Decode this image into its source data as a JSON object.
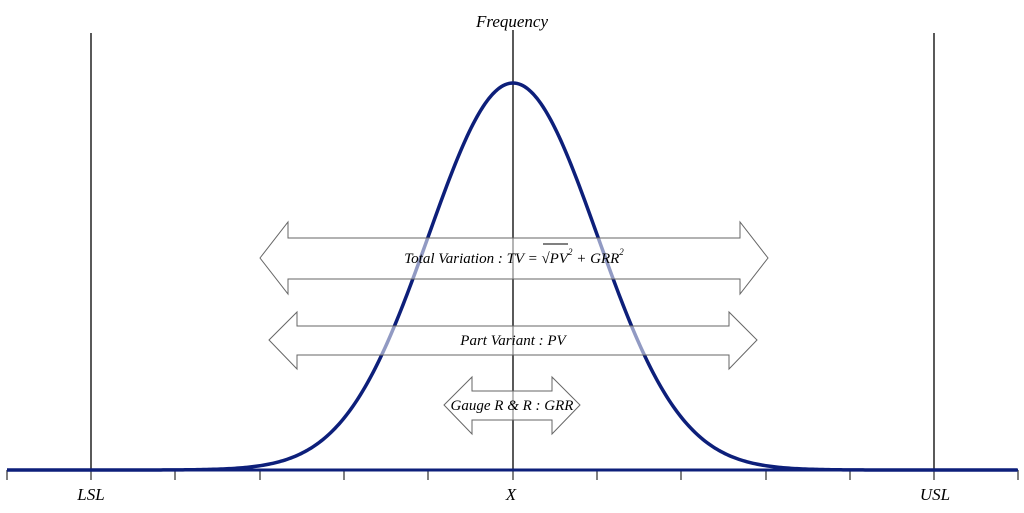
{
  "diagram": {
    "y_axis_label": "Frequency",
    "x_tick_labels": {
      "lsl": "LSL",
      "mean": "X",
      "usl": "USL"
    },
    "arrows": {
      "total_variation": {
        "text_main": "Total Variation : TV = √PV",
        "sup1": "2",
        "text_mid": " + GRR",
        "sup2": "2"
      },
      "part_variant": {
        "text": "Part Variant : PV"
      },
      "gauge_rr": {
        "text": "Gauge R & R : GRR"
      }
    },
    "colors": {
      "curve": "#0d1f7a",
      "axis": "#1a1a6e",
      "lines": "#000000",
      "arrow_stroke": "#666666"
    }
  }
}
